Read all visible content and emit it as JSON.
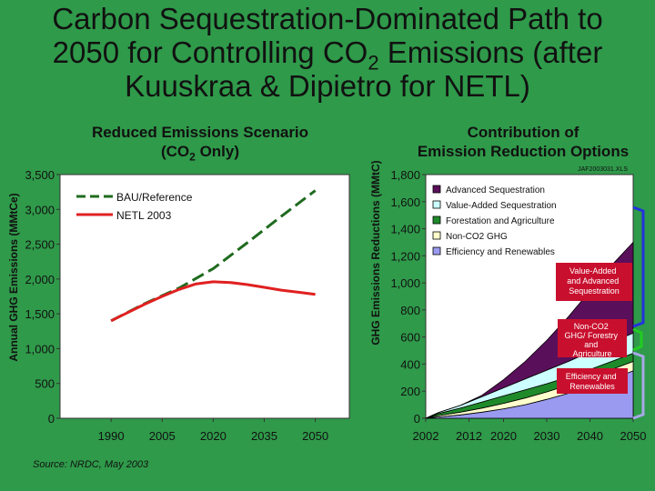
{
  "slide": {
    "title_line1": "Carbon Sequestration-Dominated Path to",
    "title_line2_a": "2050 for Controlling CO",
    "title_line2_sub": "2",
    "title_line2_b": " Emissions (after",
    "title_line3": "Kuuskraa & Dipietro for NETL)",
    "background": "#2f9a4a"
  },
  "chart_data": [
    {
      "type": "line",
      "title_line1": "Reduced Emissions Scenario",
      "title_line2_a": "(CO",
      "title_line2_sub": "2",
      "title_line2_b": " Only)",
      "ylabel": "Annual GHG Emissions (MMtCe)",
      "xlabel": "",
      "xlim": [
        1975,
        2060
      ],
      "ylim": [
        0,
        3500
      ],
      "x_ticks": [
        1990,
        2005,
        2020,
        2035,
        2050
      ],
      "y_ticks": [
        0,
        500,
        1000,
        1500,
        2000,
        2500,
        3000,
        3500
      ],
      "y_tick_labels": [
        "0",
        "500",
        "1,000",
        "1,500",
        "2,000",
        "2,500",
        "3,000",
        "3,500"
      ],
      "legend_position": "top-left",
      "source": "Source: NRDC, May 2003",
      "series": [
        {
          "name": "BAU/Reference",
          "style": "dashed",
          "color": "#1f6b1f",
          "x": [
            1990,
            2000,
            2010,
            2020,
            2030,
            2040,
            2050
          ],
          "y": [
            1400,
            1650,
            1870,
            2150,
            2520,
            2900,
            3270
          ]
        },
        {
          "name": "NETL 2003",
          "style": "solid",
          "color": "#e02020",
          "x": [
            1990,
            2000,
            2005,
            2010,
            2015,
            2020,
            2025,
            2030,
            2035,
            2040,
            2045,
            2050
          ],
          "y": [
            1400,
            1640,
            1750,
            1850,
            1930,
            1960,
            1950,
            1920,
            1880,
            1840,
            1810,
            1780
          ]
        }
      ]
    },
    {
      "type": "area",
      "title_line1": "Contribution of",
      "title_line2": "Emission Reduction Options",
      "ylabel": "GHG Emissions Reductions (MMtC)",
      "xlabel": "",
      "stamp": "JAF2003031.XLS",
      "x_ticks": [
        2002,
        2012,
        2020,
        2030,
        2040,
        2050
      ],
      "xlim": [
        2002,
        2050
      ],
      "ylim": [
        0,
        1800
      ],
      "y_ticks": [
        0,
        200,
        400,
        600,
        800,
        1000,
        1200,
        1400,
        1600,
        1800
      ],
      "y_tick_labels": [
        "0",
        "200",
        "400",
        "600",
        "800",
        "1,000",
        "1,200",
        "1,400",
        "1,600",
        "1,800"
      ],
      "legend_position": "top",
      "legend_order": [
        "Advanced Sequestration",
        "Value-Added Sequestration",
        "Forestation and Agriculture",
        "Non-CO2 GHG",
        "Efficiency and Renewables"
      ],
      "x": [
        2002,
        2005,
        2010,
        2015,
        2020,
        2025,
        2030,
        2035,
        2040,
        2045,
        2050
      ],
      "series": [
        {
          "name": "Efficiency and Renewables",
          "color": "#9a9af0",
          "values": [
            0,
            10,
            25,
            45,
            70,
            100,
            140,
            185,
            235,
            290,
            350
          ]
        },
        {
          "name": "Non-CO2 GHG",
          "color": "#ffffcc",
          "values": [
            0,
            10,
            20,
            30,
            40,
            50,
            55,
            60,
            65,
            70,
            70
          ]
        },
        {
          "name": "Forestation and Agriculture",
          "color": "#1f8a2a",
          "values": [
            0,
            15,
            30,
            45,
            55,
            60,
            60,
            60,
            60,
            60,
            60
          ]
        },
        {
          "name": "Value-Added Sequestration",
          "color": "#ccffff",
          "values": [
            0,
            8,
            20,
            40,
            60,
            80,
            100,
            115,
            130,
            140,
            150
          ]
        },
        {
          "name": "Advanced Sequestration",
          "color": "#5a0f5a",
          "values": [
            0,
            0,
            0,
            10,
            60,
            130,
            220,
            330,
            450,
            570,
            670
          ]
        }
      ],
      "annotations": [
        {
          "text_line1": "Value-Added",
          "text_line2": "and Advanced",
          "text_line3": "Sequestration",
          "color": "#c8102e"
        },
        {
          "text_line1": "Non-CO2",
          "text_line2": "GHG/ Forestry",
          "text_line3": "and",
          "text_line4": "Agriculture",
          "color": "#c8102e"
        },
        {
          "text_line1": "Efficiency and",
          "text_line2": "Renewables",
          "color": "#c8102e"
        }
      ],
      "bracket_colors": [
        "#2233dd",
        "#22cc22",
        "#a8a8e8"
      ]
    }
  ]
}
